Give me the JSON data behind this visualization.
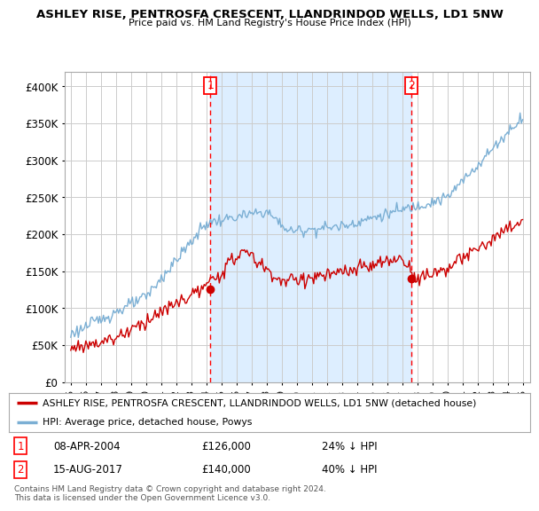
{
  "title": "ASHLEY RISE, PENTROSFA CRESCENT, LLANDRINDOD WELLS, LD1 5NW",
  "subtitle": "Price paid vs. HM Land Registry's House Price Index (HPI)",
  "hpi_label": "HPI: Average price, detached house, Powys",
  "price_label": "ASHLEY RISE, PENTROSFA CRESCENT, LLANDRINDOD WELLS, LD1 5NW (detached house)",
  "hpi_color": "#7bafd4",
  "price_color": "#cc0000",
  "shade_color": "#ddeeff",
  "marker1_date": "08-APR-2004",
  "marker1_price": 126000,
  "marker1_pct": "24% ↓ HPI",
  "marker2_date": "15-AUG-2017",
  "marker2_price": 140000,
  "marker2_pct": "40% ↓ HPI",
  "ylim": [
    0,
    420000
  ],
  "yticks": [
    0,
    50000,
    100000,
    150000,
    200000,
    250000,
    300000,
    350000,
    400000
  ],
  "copyright_text": "Contains HM Land Registry data © Crown copyright and database right 2024.\nThis data is licensed under the Open Government Licence v3.0.",
  "background_color": "#ffffff",
  "grid_color": "#cccccc",
  "marker1_x": 2004.27,
  "marker2_x": 2017.62
}
